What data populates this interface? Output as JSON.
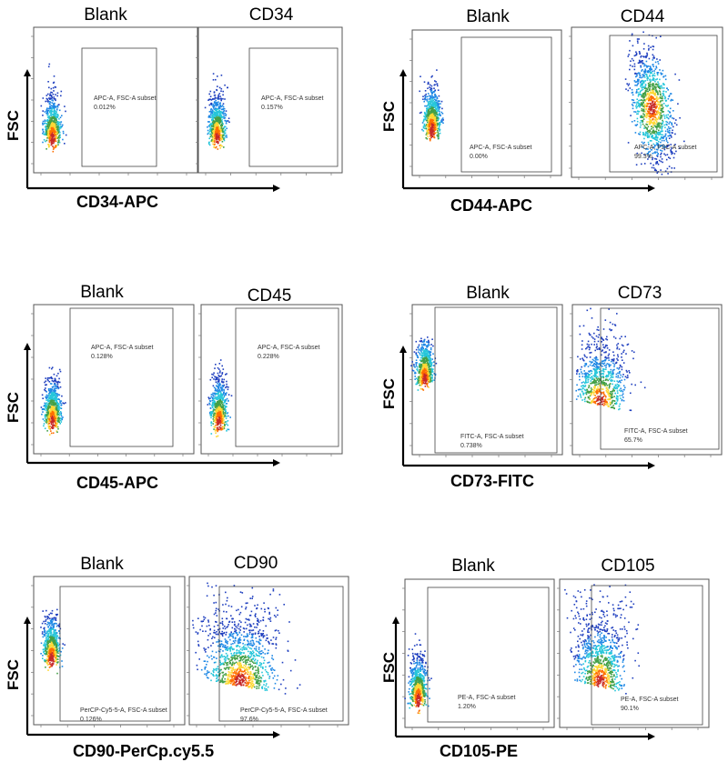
{
  "colors": {
    "axis": "#000000",
    "frame": "#555555",
    "density": [
      "#1f3fbf",
      "#1e88e5",
      "#26c6da",
      "#43a047",
      "#fdd835",
      "#ff6f00",
      "#c62828"
    ]
  },
  "chart_data": [
    {
      "type": "scatter",
      "group": "CD34",
      "y_label": "FSC",
      "x_label": "CD34-APC",
      "panels": [
        {
          "title": "Blank",
          "gate_label": "APC-A, FSC-A subset",
          "gate_value": "0.012%"
        },
        {
          "title": "CD34",
          "gate_label": "APC-A, FSC-A subset",
          "gate_value": "0.157%"
        }
      ]
    },
    {
      "type": "scatter",
      "group": "CD44",
      "y_label": "FSC",
      "x_label": "CD44-APC",
      "panels": [
        {
          "title": "Blank",
          "gate_label": "APC-A, FSC-A subset",
          "gate_value": "0.00%"
        },
        {
          "title": "CD44",
          "gate_label": "APC-A, FSC-A subset",
          "gate_value": "99.3%"
        }
      ]
    },
    {
      "type": "scatter",
      "group": "CD45",
      "y_label": "FSC",
      "x_label": "CD45-APC",
      "panels": [
        {
          "title": "Blank",
          "gate_label": "APC-A, FSC-A subset",
          "gate_value": "0.128%"
        },
        {
          "title": "CD45",
          "gate_label": "APC-A, FSC-A subset",
          "gate_value": "0.228%"
        }
      ]
    },
    {
      "type": "scatter",
      "group": "CD73",
      "y_label": "FSC",
      "x_label": "CD73-FITC",
      "panels": [
        {
          "title": "Blank",
          "gate_label": "FITC-A, FSC-A subset",
          "gate_value": "0.738%"
        },
        {
          "title": "CD73",
          "gate_label": "FITC-A, FSC-A subset",
          "gate_value": "65.7%"
        }
      ]
    },
    {
      "type": "scatter",
      "group": "CD90",
      "y_label": "FSC",
      "x_label": "CD90-PerCp.cy5.5",
      "panels": [
        {
          "title": "Blank",
          "gate_label": "PerCP-Cy5-5-A, FSC-A subset",
          "gate_value": "0.126%"
        },
        {
          "title": "CD90",
          "gate_label": "PerCP-Cy5-5-A, FSC-A subset",
          "gate_value": "97.6%"
        }
      ]
    },
    {
      "type": "scatter",
      "group": "CD105",
      "y_label": "FSC",
      "x_label": "CD105-PE",
      "panels": [
        {
          "title": "Blank",
          "gate_label": "PE-A, FSC-A subset",
          "gate_value": "1.20%"
        },
        {
          "title": "CD105",
          "gate_label": "PE-A, FSC-A subset",
          "gate_value": "90.1%"
        }
      ]
    }
  ]
}
